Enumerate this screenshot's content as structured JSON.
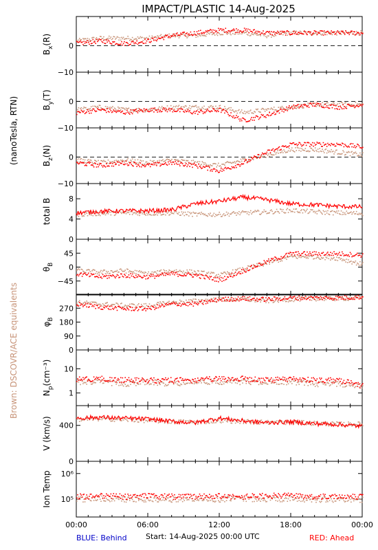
{
  "title": "IMPACT/PLASTIC   14-Aug-2025",
  "side_labels": {
    "units": "(nanoTesla, RTN)",
    "equivalents": "Brown: DSCOVR/ACE equivalents"
  },
  "footer": {
    "behind": "BLUE: Behind",
    "start": "Start: 14-Aug-2025 00:00 UTC",
    "ahead": "RED: Ahead"
  },
  "colors": {
    "ahead": "#ff0000",
    "equivalent": "#c8957a",
    "behind": "#0000c8",
    "axes": "#000000"
  },
  "chart_data": [
    {
      "id": "bx",
      "type": "scatter",
      "ylabel": "B",
      "ylabel_sub": "x",
      "ylabel_suffix": "(R)",
      "ylim": [
        -10,
        11
      ],
      "yticks": [
        0,
        -10
      ],
      "ytick_labels": [
        "0",
        "−10"
      ],
      "zero_line": true,
      "x": [
        "00:00",
        "02:00",
        "04:00",
        "06:00",
        "08:00",
        "10:00",
        "12:00",
        "14:00",
        "16:00",
        "18:00",
        "20:00",
        "22:00",
        "24:00"
      ],
      "series": [
        {
          "name": "RED: Ahead",
          "values": [
            1,
            2,
            1,
            2,
            4,
            5,
            6,
            6,
            5,
            5,
            5,
            5,
            5
          ]
        },
        {
          "name": "Brown: DSCOVR/ACE equivalents",
          "values": [
            2,
            3,
            3,
            3,
            4,
            4,
            5,
            5,
            4,
            5,
            5,
            5,
            5
          ]
        }
      ]
    },
    {
      "id": "by",
      "type": "scatter",
      "ylabel": "B",
      "ylabel_sub": "y",
      "ylabel_suffix": "(T)",
      "ylim": [
        -10,
        11
      ],
      "yticks": [
        0,
        -10
      ],
      "ytick_labels": [
        "0",
        "−10"
      ],
      "zero_line": true,
      "x": [
        "00:00",
        "02:00",
        "04:00",
        "06:00",
        "08:00",
        "10:00",
        "12:00",
        "14:00",
        "16:00",
        "18:00",
        "20:00",
        "22:00",
        "24:00"
      ],
      "series": [
        {
          "name": "RED: Ahead",
          "values": [
            -4,
            -3,
            -4,
            -3,
            -3,
            -4,
            -3,
            -7,
            -5,
            -2,
            -1,
            -2,
            -1
          ]
        },
        {
          "name": "Brown: DSCOVR/ACE equivalents",
          "values": [
            -3,
            -2,
            -3,
            -3,
            -2,
            -2,
            -2,
            -4,
            -3,
            -2,
            -1,
            -1,
            -1
          ]
        }
      ]
    },
    {
      "id": "bz",
      "type": "scatter",
      "ylabel": "B",
      "ylabel_sub": "z",
      "ylabel_suffix": "(N)",
      "ylim": [
        -10,
        11
      ],
      "yticks": [
        0,
        -10
      ],
      "ytick_labels": [
        "0",
        "−10"
      ],
      "zero_line": true,
      "x": [
        "00:00",
        "02:00",
        "04:00",
        "06:00",
        "08:00",
        "10:00",
        "12:00",
        "14:00",
        "16:00",
        "18:00",
        "20:00",
        "22:00",
        "24:00"
      ],
      "series": [
        {
          "name": "RED: Ahead",
          "values": [
            -2,
            -3,
            -2,
            -3,
            -2,
            -3,
            -5,
            -2,
            2,
            5,
            5,
            5,
            4
          ]
        },
        {
          "name": "Brown: DSCOVR/ACE equivalents",
          "values": [
            -1,
            -2,
            -1,
            -2,
            -1,
            -2,
            -3,
            -1,
            1,
            3,
            3,
            2,
            1
          ]
        }
      ]
    },
    {
      "id": "bt",
      "type": "line",
      "ylabel": "total B",
      "ylabel_sub": "",
      "ylabel_suffix": "",
      "ylim": [
        0,
        11
      ],
      "yticks": [
        8,
        4,
        0
      ],
      "ytick_labels": [
        "8",
        "4",
        "0"
      ],
      "zero_line": false,
      "x": [
        "00:00",
        "02:00",
        "04:00",
        "06:00",
        "08:00",
        "10:00",
        "12:00",
        "14:00",
        "16:00",
        "18:00",
        "20:00",
        "22:00",
        "24:00"
      ],
      "series": [
        {
          "name": "RED: Ahead",
          "values": [
            5.2,
            5.5,
            5.6,
            5.6,
            5.8,
            7.0,
            7.5,
            8.3,
            7.8,
            7.0,
            6.8,
            6.5,
            6.4
          ]
        },
        {
          "name": "Brown: DSCOVR/ACE equivalents",
          "values": [
            5.0,
            5.2,
            5.3,
            5.2,
            5.3,
            5.0,
            5.0,
            5.3,
            5.5,
            5.8,
            5.5,
            5.3,
            5.2
          ]
        }
      ]
    },
    {
      "id": "theta",
      "type": "scatter",
      "ylabel": "θ",
      "ylabel_sub": "B",
      "ylabel_suffix": "",
      "ylim": [
        -90,
        90
      ],
      "yticks": [
        45,
        0,
        -45
      ],
      "ytick_labels": [
        "45",
        "0",
        "−45"
      ],
      "zero_line": false,
      "x": [
        "00:00",
        "02:00",
        "04:00",
        "06:00",
        "08:00",
        "10:00",
        "12:00",
        "14:00",
        "16:00",
        "18:00",
        "20:00",
        "22:00",
        "24:00"
      ],
      "series": [
        {
          "name": "RED: Ahead",
          "values": [
            -20,
            -30,
            -25,
            -30,
            -20,
            -25,
            -40,
            -10,
            20,
            45,
            45,
            45,
            40
          ]
        },
        {
          "name": "Brown: DSCOVR/ACE equivalents",
          "values": [
            -10,
            -15,
            -10,
            -20,
            -10,
            -15,
            -25,
            -5,
            15,
            35,
            35,
            30,
            10
          ]
        }
      ]
    },
    {
      "id": "phi",
      "type": "scatter",
      "ylabel": "φ",
      "ylabel_sub": "B",
      "ylabel_suffix": "",
      "ylim": [
        0,
        360
      ],
      "yticks": [
        270,
        180,
        90,
        0
      ],
      "ytick_labels": [
        "270",
        "180",
        "90",
        "0"
      ],
      "zero_line": false,
      "x": [
        "00:00",
        "02:00",
        "04:00",
        "06:00",
        "08:00",
        "10:00",
        "12:00",
        "14:00",
        "16:00",
        "18:00",
        "20:00",
        "22:00",
        "24:00"
      ],
      "series": [
        {
          "name": "RED: Ahead",
          "values": [
            300,
            280,
            270,
            270,
            300,
            300,
            330,
            335,
            330,
            340,
            340,
            340,
            345
          ]
        },
        {
          "name": "Brown: DSCOVR/ACE equivalents",
          "values": [
            310,
            300,
            290,
            290,
            310,
            320,
            330,
            330,
            320,
            330,
            335,
            335,
            340
          ]
        }
      ]
    },
    {
      "id": "np",
      "type": "scatter",
      "log": true,
      "ylabel": "N",
      "ylabel_sub": "p",
      "ylabel_suffix": "(cm⁻³)",
      "ylim": [
        0.3,
        60
      ],
      "yticks": [
        10,
        1
      ],
      "ytick_labels": [
        "10",
        "1"
      ],
      "zero_line": false,
      "x": [
        "00:00",
        "02:00",
        "04:00",
        "06:00",
        "08:00",
        "10:00",
        "12:00",
        "14:00",
        "16:00",
        "18:00",
        "20:00",
        "22:00",
        "24:00"
      ],
      "series": [
        {
          "name": "RED: Ahead",
          "values": [
            4,
            4,
            3.5,
            3.5,
            3.5,
            3.5,
            4,
            4,
            3.5,
            4,
            3.5,
            3.5,
            2
          ]
        },
        {
          "name": "Brown: DSCOVR/ACE equivalents",
          "values": [
            3,
            3,
            2.5,
            3,
            2.5,
            3,
            3,
            3,
            3,
            3,
            2.5,
            2.5,
            2
          ]
        }
      ]
    },
    {
      "id": "v",
      "type": "line",
      "ylabel": "V (km/s)",
      "ylabel_sub": "",
      "ylabel_suffix": "",
      "ylim": [
        0,
        620
      ],
      "yticks": [
        400,
        0
      ],
      "ytick_labels": [
        "400",
        "0"
      ],
      "zero_line": false,
      "x": [
        "00:00",
        "02:00",
        "04:00",
        "06:00",
        "08:00",
        "10:00",
        "12:00",
        "14:00",
        "16:00",
        "18:00",
        "20:00",
        "22:00",
        "24:00"
      ],
      "series": [
        {
          "name": "RED: Ahead",
          "values": [
            480,
            490,
            480,
            470,
            445,
            430,
            480,
            450,
            430,
            440,
            420,
            410,
            390
          ]
        },
        {
          "name": "Brown: DSCOVR/ACE equivalents",
          "values": [
            470,
            480,
            470,
            460,
            450,
            440,
            460,
            450,
            440,
            440,
            430,
            420,
            420
          ]
        }
      ]
    },
    {
      "id": "temp",
      "type": "scatter",
      "log": true,
      "ylabel": "Ion Temp",
      "ylabel_sub": "",
      "ylabel_suffix": "",
      "ylim": [
        20000,
        3000000
      ],
      "yticks": [
        1000000,
        100000
      ],
      "ytick_labels": [
        "10⁶",
        "10⁵"
      ],
      "zero_line": false,
      "x": [
        "00:00",
        "02:00",
        "04:00",
        "06:00",
        "08:00",
        "10:00",
        "12:00",
        "14:00",
        "16:00",
        "18:00",
        "20:00",
        "22:00",
        "24:00"
      ],
      "series": [
        {
          "name": "RED: Ahead",
          "values": [
            130000,
            140000,
            130000,
            140000,
            130000,
            130000,
            140000,
            130000,
            140000,
            140000,
            130000,
            140000,
            130000
          ]
        },
        {
          "name": "Brown: DSCOVR/ACE equivalents",
          "values": [
            100000,
            110000,
            100000,
            100000,
            100000,
            110000,
            100000,
            110000,
            100000,
            110000,
            100000,
            100000,
            100000
          ]
        }
      ]
    }
  ],
  "xaxis": {
    "tick_labels": [
      "00:00",
      "06:00",
      "12:00",
      "18:00",
      "00:00"
    ],
    "range_hours": [
      0,
      24
    ]
  }
}
